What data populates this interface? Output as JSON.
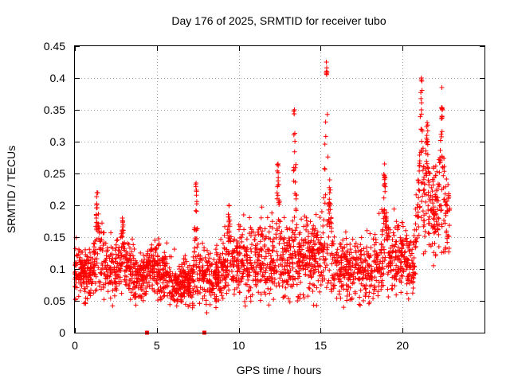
{
  "chart_data": {
    "type": "scatter",
    "title": "Day 176 of 2025, SRMTID for receiver tubo",
    "xlabel": "GPS time / hours",
    "ylabel": "SRMTID / TECUs",
    "xlim": [
      0,
      25
    ],
    "ylim": [
      0,
      0.45
    ],
    "xticks": [
      0,
      5,
      10,
      15,
      20
    ],
    "xtick_labels": [
      "0",
      "5",
      "10",
      "15",
      "20"
    ],
    "yticks": [
      0,
      0.05,
      0.1,
      0.15,
      0.2,
      0.25,
      0.3,
      0.35,
      0.4,
      0.45
    ],
    "ytick_labels": [
      "0",
      "0.05",
      "0.1",
      "0.15",
      "0.2",
      "0.25",
      "0.3",
      "0.35",
      "0.4",
      "0.45"
    ],
    "grid": true,
    "marker": "+",
    "color": "#ff0000",
    "data_range_hours": [
      0,
      22.9
    ],
    "samples_per_hour": 120,
    "envelope": [
      {
        "x": 0.0,
        "median": 0.095,
        "spread": 0.035
      },
      {
        "x": 0.5,
        "median": 0.09,
        "spread": 0.035
      },
      {
        "x": 1.0,
        "median": 0.09,
        "spread": 0.035
      },
      {
        "x": 1.4,
        "median": 0.13,
        "spread": 0.05
      },
      {
        "x": 2.0,
        "median": 0.095,
        "spread": 0.035
      },
      {
        "x": 3.0,
        "median": 0.1,
        "spread": 0.045
      },
      {
        "x": 3.5,
        "median": 0.09,
        "spread": 0.035
      },
      {
        "x": 4.0,
        "median": 0.085,
        "spread": 0.03
      },
      {
        "x": 5.0,
        "median": 0.105,
        "spread": 0.035
      },
      {
        "x": 6.0,
        "median": 0.08,
        "spread": 0.03
      },
      {
        "x": 7.0,
        "median": 0.08,
        "spread": 0.03
      },
      {
        "x": 7.5,
        "median": 0.09,
        "spread": 0.04
      },
      {
        "x": 8.5,
        "median": 0.085,
        "spread": 0.035
      },
      {
        "x": 9.5,
        "median": 0.11,
        "spread": 0.045
      },
      {
        "x": 10.5,
        "median": 0.11,
        "spread": 0.045
      },
      {
        "x": 12.0,
        "median": 0.12,
        "spread": 0.05
      },
      {
        "x": 13.0,
        "median": 0.115,
        "spread": 0.05
      },
      {
        "x": 14.0,
        "median": 0.12,
        "spread": 0.05
      },
      {
        "x": 15.0,
        "median": 0.12,
        "spread": 0.05
      },
      {
        "x": 16.0,
        "median": 0.1,
        "spread": 0.04
      },
      {
        "x": 17.0,
        "median": 0.095,
        "spread": 0.04
      },
      {
        "x": 18.0,
        "median": 0.1,
        "spread": 0.045
      },
      {
        "x": 19.0,
        "median": 0.12,
        "spread": 0.05
      },
      {
        "x": 20.0,
        "median": 0.12,
        "spread": 0.05
      },
      {
        "x": 20.6,
        "median": 0.09,
        "spread": 0.04
      },
      {
        "x": 21.0,
        "median": 0.2,
        "spread": 0.07
      },
      {
        "x": 21.8,
        "median": 0.2,
        "spread": 0.07
      },
      {
        "x": 22.5,
        "median": 0.19,
        "spread": 0.06
      },
      {
        "x": 22.9,
        "median": 0.18,
        "spread": 0.05
      }
    ],
    "peaks": [
      {
        "x": 1.35,
        "y": 0.22
      },
      {
        "x": 2.9,
        "y": 0.18
      },
      {
        "x": 7.4,
        "y": 0.235
      },
      {
        "x": 9.4,
        "y": 0.2
      },
      {
        "x": 12.4,
        "y": 0.265
      },
      {
        "x": 13.4,
        "y": 0.35
      },
      {
        "x": 15.35,
        "y": 0.425
      },
      {
        "x": 15.55,
        "y": 0.24
      },
      {
        "x": 18.9,
        "y": 0.265
      },
      {
        "x": 21.15,
        "y": 0.4
      },
      {
        "x": 22.4,
        "y": 0.385
      },
      {
        "x": 21.5,
        "y": 0.33
      }
    ],
    "zero_markers": [
      {
        "x": 4.4,
        "y": 0
      },
      {
        "x": 7.9,
        "y": 0
      }
    ]
  }
}
